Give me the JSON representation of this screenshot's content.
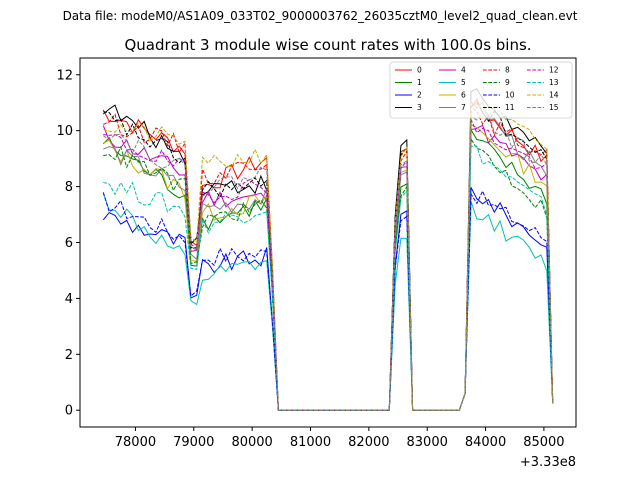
{
  "chart_data": {
    "type": "line",
    "suptitle": "Data file: modeM0/AS1A09_033T02_9000003762_26035cztM0_level2_quad_clean.evt",
    "title": "Quadrant 3 module wise count rates with 100.0s bins.",
    "xlabel": "",
    "ylabel": "",
    "x_offset_label": "+3.33e8",
    "xlim": [
      77050,
      85550
    ],
    "ylim": [
      -0.6,
      12.6
    ],
    "x_ticks": [
      78000,
      79000,
      80000,
      81000,
      82000,
      83000,
      84000,
      85000
    ],
    "x_tick_labels": [
      "78000",
      "79000",
      "80000",
      "81000",
      "82000",
      "83000",
      "84000",
      "85000"
    ],
    "y_ticks": [
      0,
      2,
      4,
      6,
      8,
      10,
      12
    ],
    "y_tick_labels": [
      "0",
      "2",
      "4",
      "6",
      "8",
      "10",
      "12"
    ],
    "grid": false,
    "legend_position": "top-right",
    "segments": [
      {
        "start": 77450,
        "end": 80250,
        "n": 29
      },
      {
        "start": 80350,
        "end": 80450,
        "n": 2
      },
      {
        "start": 80450,
        "end": 82350,
        "n": 20
      },
      {
        "start": 82350,
        "end": 82750,
        "n": 5
      },
      {
        "start": 82750,
        "end": 83550,
        "n": 9
      },
      {
        "start": 83550,
        "end": 83750,
        "n": 3
      },
      {
        "start": 83750,
        "end": 85150,
        "n": 15
      }
    ],
    "series": [
      {
        "name": "0",
        "color": "#ff0000",
        "dash": "solid",
        "seg1_start": 10.7,
        "seg1_pre_dip": 9.3,
        "seg1_dip": 6.0,
        "seg1_after": 8.0,
        "seg1_end": 9.0,
        "peak2": 9.4,
        "seg3_start": 11.0,
        "seg3_end": 8.9
      },
      {
        "name": "1",
        "color": "#008000",
        "dash": "solid",
        "seg1_start": 9.6,
        "seg1_pre_dip": 7.6,
        "seg1_dip": 5.3,
        "seg1_after": 6.7,
        "seg1_end": 7.4,
        "peak2": 8.1,
        "seg3_start": 9.8,
        "seg3_end": 7.6
      },
      {
        "name": "2",
        "color": "#0000ff",
        "dash": "solid",
        "seg1_start": 7.0,
        "seg1_pre_dip": 5.9,
        "seg1_dip": 4.0,
        "seg1_after": 5.1,
        "seg1_end": 5.5,
        "peak2": 7.1,
        "seg3_start": 7.9,
        "seg3_end": 5.9
      },
      {
        "name": "3",
        "color": "#000000",
        "dash": "solid",
        "seg1_start": 10.9,
        "seg1_pre_dip": 9.0,
        "seg1_dip": 6.1,
        "seg1_after": 8.0,
        "seg1_end": 8.1,
        "peak2": 9.6,
        "seg3_start": 11.5,
        "seg3_end": 9.1
      },
      {
        "name": "4",
        "color": "#c000c0",
        "dash": "solid",
        "seg1_start": 9.9,
        "seg1_pre_dip": 8.4,
        "seg1_dip": 5.7,
        "seg1_after": 7.6,
        "seg1_end": 7.6,
        "peak2": 8.8,
        "seg3_start": 10.3,
        "seg3_end": 8.2
      },
      {
        "name": "5",
        "color": "#00c0b0",
        "dash": "solid",
        "seg1_start": 7.6,
        "seg1_pre_dip": 5.3,
        "seg1_dip": 3.8,
        "seg1_after": 4.7,
        "seg1_end": 5.3,
        "peak2": 6.2,
        "seg3_start": 7.3,
        "seg3_end": 5.2
      },
      {
        "name": "6",
        "color": "#c0b000",
        "dash": "solid",
        "seg1_start": 9.5,
        "seg1_pre_dip": 7.8,
        "seg1_dip": 5.4,
        "seg1_after": 7.0,
        "seg1_end": 7.5,
        "peak2": 8.6,
        "seg3_start": 10.2,
        "seg3_end": 8.1
      },
      {
        "name": "7",
        "color": "#808080",
        "dash": "solid",
        "seg1_start": 9.4,
        "seg1_pre_dip": 7.9,
        "seg1_dip": 5.5,
        "seg1_after": 7.2,
        "seg1_end": 7.6,
        "peak2": 8.5,
        "seg3_start": 11.2,
        "seg3_end": 8.3
      },
      {
        "name": "8",
        "color": "#ff0000",
        "dash": "dashed",
        "seg1_start": 10.4,
        "seg1_pre_dip": 9.4,
        "seg1_dip": 5.9,
        "seg1_after": 8.3,
        "seg1_end": 9.0,
        "peak2": 9.2,
        "seg3_start": 10.6,
        "seg3_end": 9.1
      },
      {
        "name": "9",
        "color": "#008000",
        "dash": "dashed",
        "seg1_start": 9.4,
        "seg1_pre_dip": 7.9,
        "seg1_dip": 5.2,
        "seg1_after": 6.8,
        "seg1_end": 7.3,
        "peak2": 7.9,
        "seg3_start": 9.6,
        "seg3_end": 7.1
      },
      {
        "name": "10",
        "color": "#0000ff",
        "dash": "dashed",
        "seg1_start": 7.5,
        "seg1_pre_dip": 6.1,
        "seg1_dip": 4.2,
        "seg1_after": 5.5,
        "seg1_end": 5.6,
        "peak2": 7.0,
        "seg3_start": 7.8,
        "seg3_end": 6.1
      },
      {
        "name": "11",
        "color": "#000000",
        "dash": "dashed",
        "seg1_start": 10.5,
        "seg1_pre_dip": 8.9,
        "seg1_dip": 5.8,
        "seg1_after": 7.9,
        "seg1_end": 8.0,
        "peak2": 9.4,
        "seg3_start": 11.1,
        "seg3_end": 8.9
      },
      {
        "name": "12",
        "color": "#c000c0",
        "dash": "dashed",
        "seg1_start": 9.8,
        "seg1_pre_dip": 8.6,
        "seg1_dip": 5.8,
        "seg1_after": 7.7,
        "seg1_end": 8.1,
        "peak2": 8.9,
        "seg3_start": 10.2,
        "seg3_end": 8.6
      },
      {
        "name": "13",
        "color": "#00c0b0",
        "dash": "dashed",
        "seg1_start": 8.2,
        "seg1_pre_dip": 7.1,
        "seg1_dip": 5.1,
        "seg1_after": 6.6,
        "seg1_end": 7.3,
        "peak2": 7.8,
        "seg3_start": 9.4,
        "seg3_end": 7.2
      },
      {
        "name": "14",
        "color": "#c0b000",
        "dash": "dashed",
        "seg1_start": 10.2,
        "seg1_pre_dip": 9.6,
        "seg1_dip": 6.1,
        "seg1_after": 8.7,
        "seg1_end": 9.2,
        "peak2": 9.3,
        "seg3_start": 11.1,
        "seg3_end": 9.4
      },
      {
        "name": "15",
        "color": "#808080",
        "dash": "dashed",
        "seg1_start": 10.1,
        "seg1_pre_dip": 8.5,
        "seg1_dip": 5.9,
        "seg1_after": 7.9,
        "seg1_end": 8.5,
        "peak2": 9.0,
        "seg3_start": 10.8,
        "seg3_end": 8.7
      }
    ]
  }
}
